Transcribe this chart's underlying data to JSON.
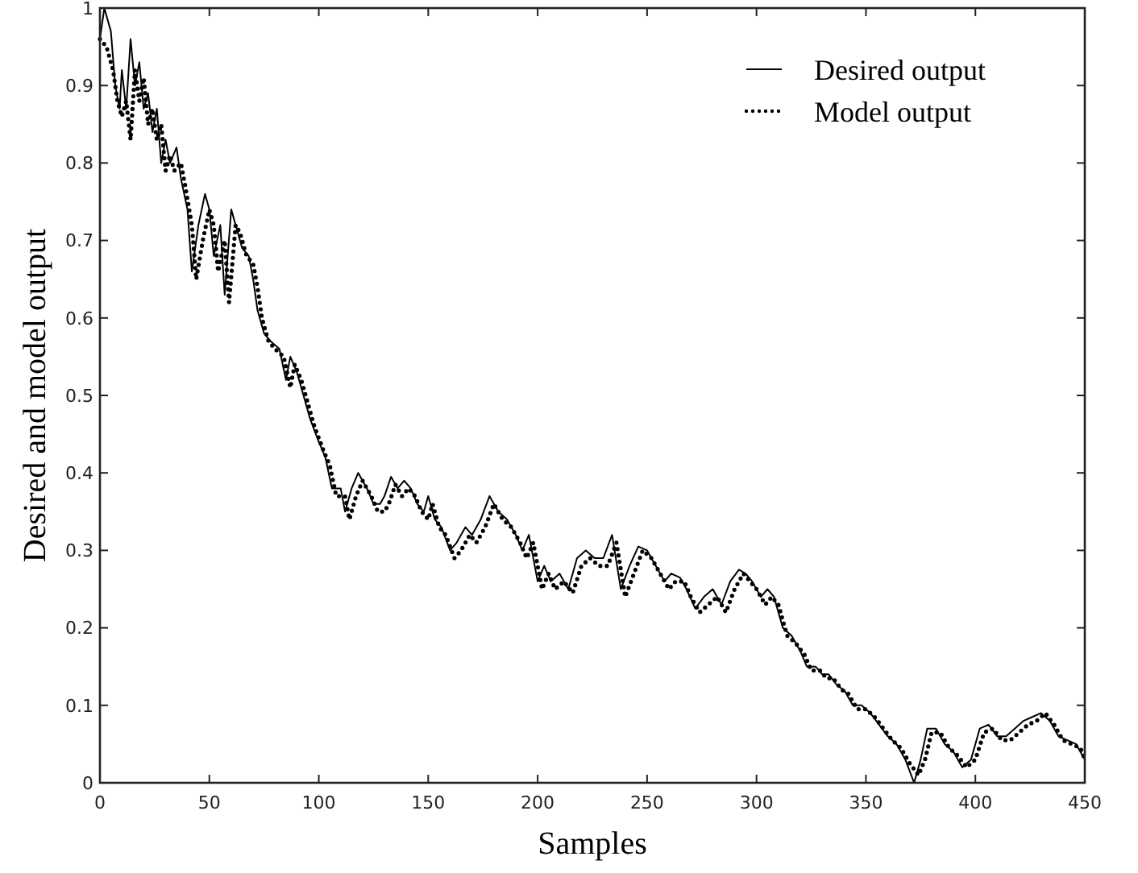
{
  "chart_data": {
    "type": "line",
    "xlabel": "Samples",
    "ylabel": "Desired and model output",
    "xlim": [
      0,
      450
    ],
    "ylim": [
      0,
      1
    ],
    "xticks": [
      0,
      50,
      100,
      150,
      200,
      250,
      300,
      350,
      400,
      450
    ],
    "yticks": [
      0,
      0.1,
      0.2,
      0.3,
      0.4,
      0.5,
      0.6,
      0.7,
      0.8,
      0.9,
      1
    ],
    "legend": "top right",
    "grid": false,
    "marker": "none",
    "series": [
      {
        "name": "Desired output",
        "color": "#000000",
        "line_style": "solid",
        "x": [
          0,
          2,
          5,
          7,
          9,
          10,
          12,
          14,
          16,
          18,
          20,
          22,
          24,
          26,
          28,
          30,
          32,
          35,
          37,
          40,
          42,
          45,
          48,
          50,
          52,
          55,
          57,
          60,
          62,
          65,
          68,
          70,
          72,
          75,
          78,
          82,
          85,
          87,
          90,
          93,
          96,
          100,
          103,
          106,
          110,
          112,
          115,
          118,
          122,
          125,
          128,
          130,
          133,
          136,
          139,
          142,
          145,
          148,
          150,
          153,
          156,
          160,
          163,
          167,
          170,
          174,
          178,
          182,
          186,
          190,
          193,
          196,
          200,
          203,
          206,
          210,
          214,
          218,
          222,
          226,
          230,
          234,
          238,
          242,
          246,
          250,
          254,
          258,
          261,
          265,
          268,
          272,
          276,
          280,
          284,
          288,
          292,
          295,
          298,
          302,
          305,
          308,
          312,
          316,
          320,
          323,
          327,
          330,
          333,
          337,
          340,
          344,
          348,
          352,
          356,
          360,
          364,
          368,
          372,
          375,
          378,
          382,
          386,
          390,
          394,
          398,
          402,
          406,
          410,
          414,
          418,
          422,
          426,
          430,
          434,
          438,
          442,
          446,
          450
        ],
        "values": [
          0.96,
          1.0,
          0.97,
          0.9,
          0.87,
          0.92,
          0.87,
          0.96,
          0.9,
          0.93,
          0.87,
          0.89,
          0.84,
          0.87,
          0.8,
          0.83,
          0.8,
          0.82,
          0.78,
          0.74,
          0.66,
          0.72,
          0.76,
          0.74,
          0.68,
          0.72,
          0.63,
          0.74,
          0.72,
          0.69,
          0.68,
          0.65,
          0.61,
          0.58,
          0.57,
          0.56,
          0.52,
          0.55,
          0.53,
          0.5,
          0.47,
          0.44,
          0.42,
          0.38,
          0.38,
          0.35,
          0.38,
          0.4,
          0.38,
          0.36,
          0.36,
          0.37,
          0.395,
          0.38,
          0.39,
          0.38,
          0.36,
          0.35,
          0.37,
          0.34,
          0.33,
          0.3,
          0.31,
          0.33,
          0.32,
          0.34,
          0.37,
          0.35,
          0.34,
          0.32,
          0.3,
          0.32,
          0.26,
          0.28,
          0.26,
          0.27,
          0.25,
          0.29,
          0.3,
          0.29,
          0.29,
          0.32,
          0.25,
          0.28,
          0.305,
          0.3,
          0.28,
          0.26,
          0.27,
          0.265,
          0.25,
          0.225,
          0.24,
          0.25,
          0.23,
          0.26,
          0.275,
          0.27,
          0.26,
          0.24,
          0.25,
          0.24,
          0.2,
          0.19,
          0.17,
          0.15,
          0.15,
          0.14,
          0.14,
          0.125,
          0.12,
          0.1,
          0.1,
          0.09,
          0.075,
          0.06,
          0.05,
          0.03,
          0.0,
          0.03,
          0.07,
          0.07,
          0.05,
          0.04,
          0.02,
          0.03,
          0.07,
          0.075,
          0.06,
          0.06,
          0.07,
          0.08,
          0.085,
          0.09,
          0.08,
          0.06,
          0.055,
          0.05,
          0.03
        ]
      },
      {
        "name": "Model output",
        "color": "#000000",
        "line_style": "dotted",
        "x": [
          0,
          3,
          6,
          8,
          10,
          12,
          14,
          16,
          18,
          20,
          22,
          24,
          26,
          28,
          30,
          32,
          34,
          37,
          39,
          42,
          44,
          47,
          50,
          52,
          54,
          57,
          59,
          62,
          64,
          67,
          70,
          72,
          74,
          77,
          80,
          84,
          87,
          89,
          92,
          95,
          98,
          102,
          105,
          108,
          112,
          114,
          117,
          120,
          124,
          127,
          130,
          132,
          135,
          138,
          141,
          144,
          147,
          150,
          152,
          155,
          158,
          162,
          165,
          169,
          172,
          176,
          180,
          184,
          188,
          192,
          195,
          198,
          202,
          205,
          208,
          212,
          216,
          220,
          224,
          228,
          232,
          236,
          240,
          244,
          248,
          252,
          256,
          260,
          263,
          267,
          270,
          274,
          278,
          282,
          286,
          290,
          294,
          297,
          300,
          304,
          307,
          310,
          314,
          318,
          322,
          325,
          329,
          332,
          335,
          339,
          342,
          346,
          350,
          354,
          358,
          362,
          366,
          370,
          374,
          377,
          380,
          384,
          388,
          392,
          396,
          400,
          404,
          408,
          412,
          416,
          420,
          424,
          428,
          432,
          436,
          440,
          444,
          448,
          450
        ],
        "values": [
          0.96,
          0.95,
          0.92,
          0.88,
          0.86,
          0.88,
          0.83,
          0.92,
          0.88,
          0.91,
          0.85,
          0.87,
          0.83,
          0.85,
          0.79,
          0.81,
          0.79,
          0.8,
          0.77,
          0.72,
          0.65,
          0.7,
          0.74,
          0.72,
          0.66,
          0.7,
          0.62,
          0.72,
          0.71,
          0.68,
          0.67,
          0.64,
          0.6,
          0.57,
          0.56,
          0.55,
          0.51,
          0.54,
          0.52,
          0.49,
          0.46,
          0.43,
          0.41,
          0.37,
          0.37,
          0.34,
          0.37,
          0.39,
          0.37,
          0.35,
          0.35,
          0.36,
          0.385,
          0.37,
          0.38,
          0.37,
          0.35,
          0.34,
          0.36,
          0.33,
          0.32,
          0.29,
          0.3,
          0.32,
          0.31,
          0.33,
          0.36,
          0.34,
          0.33,
          0.31,
          0.29,
          0.31,
          0.25,
          0.27,
          0.25,
          0.26,
          0.245,
          0.28,
          0.29,
          0.28,
          0.28,
          0.31,
          0.24,
          0.27,
          0.3,
          0.29,
          0.27,
          0.25,
          0.26,
          0.26,
          0.24,
          0.22,
          0.23,
          0.24,
          0.22,
          0.25,
          0.27,
          0.26,
          0.25,
          0.23,
          0.24,
          0.23,
          0.19,
          0.18,
          0.165,
          0.145,
          0.145,
          0.135,
          0.135,
          0.12,
          0.115,
          0.095,
          0.095,
          0.085,
          0.07,
          0.055,
          0.045,
          0.025,
          0.01,
          0.03,
          0.065,
          0.065,
          0.045,
          0.035,
          0.02,
          0.03,
          0.065,
          0.07,
          0.055,
          0.055,
          0.065,
          0.075,
          0.08,
          0.09,
          0.075,
          0.055,
          0.05,
          0.045,
          0.03
        ]
      }
    ]
  }
}
